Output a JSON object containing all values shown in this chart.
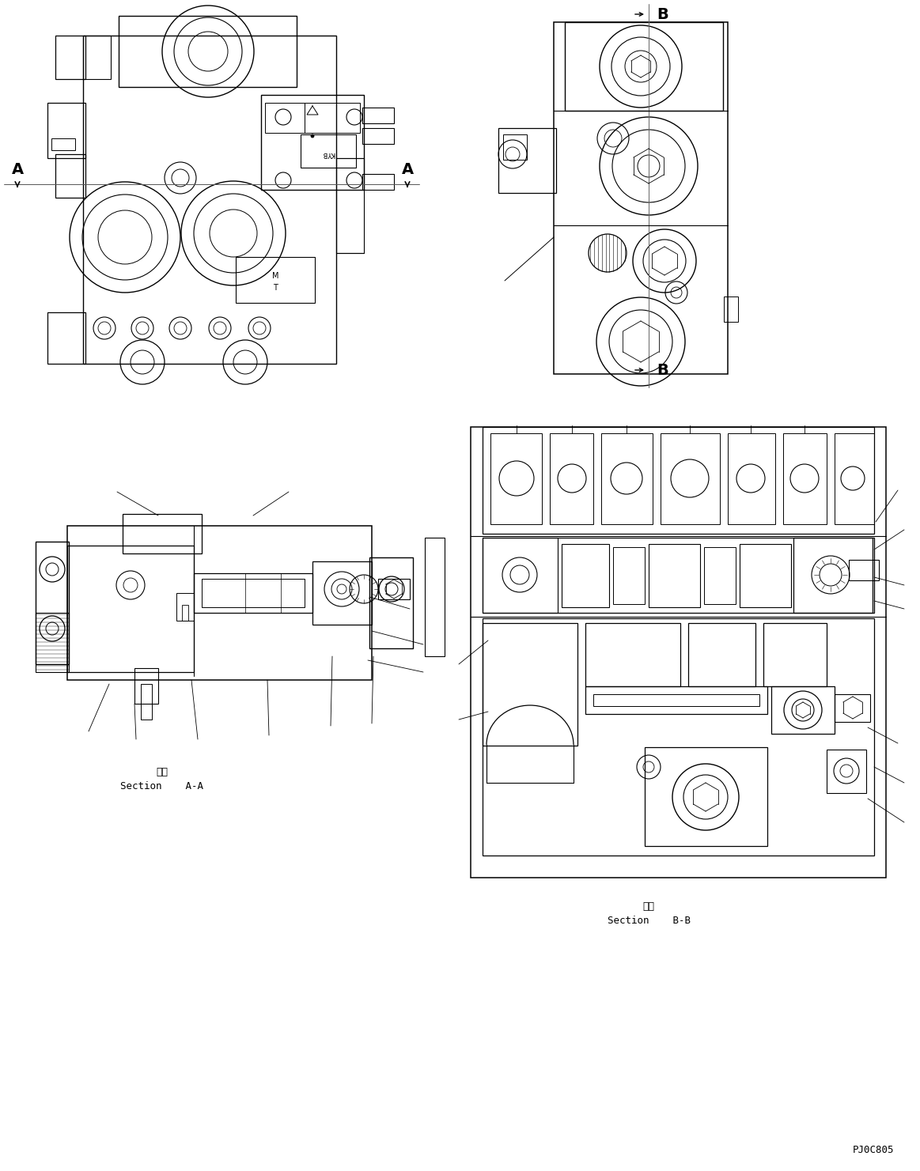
{
  "bg_color": "#ffffff",
  "fig_width": 11.63,
  "fig_height": 14.81,
  "dpi": 100,
  "section_aa": "Section    A-A",
  "section_bb": "Section    B-B",
  "danmian": "断面",
  "code": "PJ0C805"
}
